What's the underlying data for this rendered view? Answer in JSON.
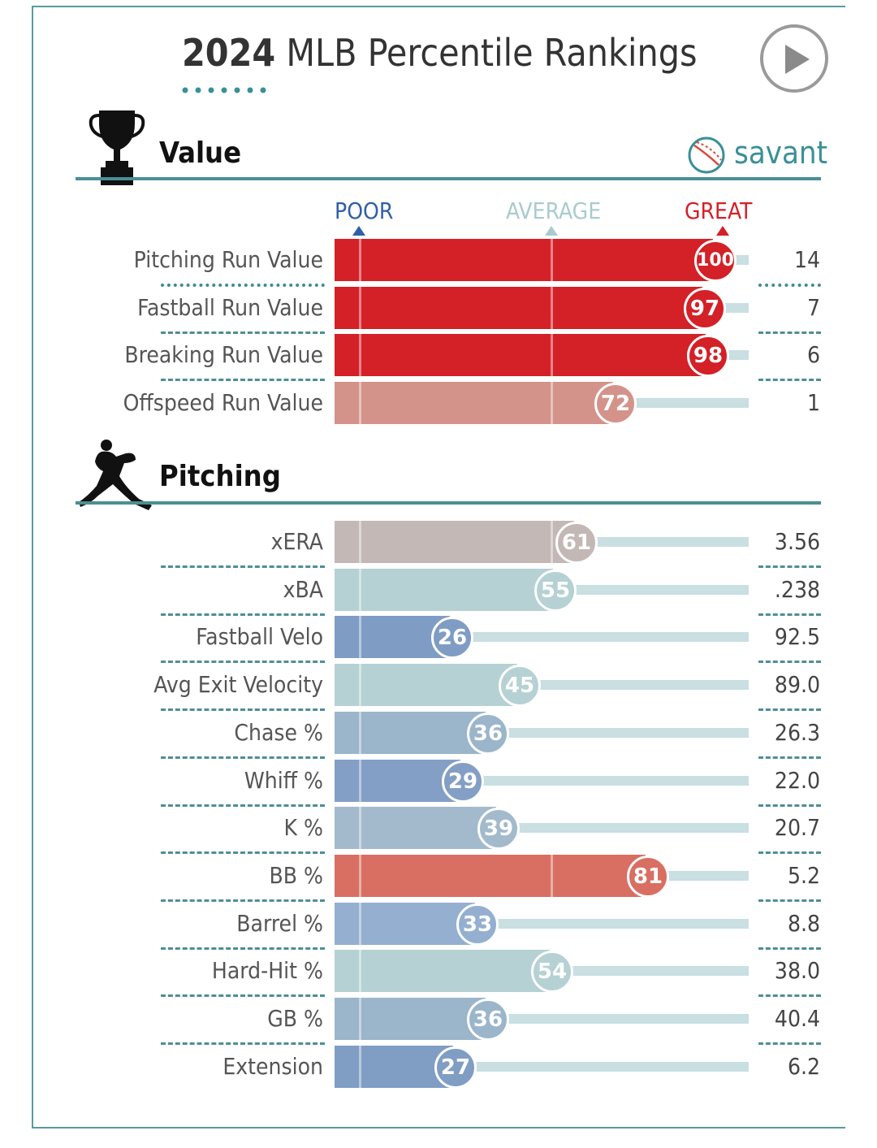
{
  "header": {
    "title_year": "2024",
    "title_rest": "MLB Percentile Rankings"
  },
  "logo": {
    "savant_label": "savant"
  },
  "icons": {
    "play": "play-icon",
    "trophy": "trophy-icon",
    "pitcher": "pitcher-silhouette-icon",
    "baseball": "baseball-icon"
  },
  "colors": {
    "accent": "#3b8f98",
    "great": "#d42027",
    "poor": "#2f5fa8",
    "average": "#a9cbce"
  },
  "axis_labels": {
    "poor": "POOR",
    "average": "AVERAGE",
    "great": "GREAT"
  },
  "chart_data": [
    {
      "type": "bar",
      "section": "Value",
      "orientation": "horizontal",
      "categories": [
        "Pitching Run Value",
        "Fastball Run Value",
        "Breaking Run Value",
        "Offspeed Run Value"
      ],
      "percentiles": [
        100,
        97,
        98,
        72
      ],
      "values": [
        "14",
        "7",
        "6",
        "1"
      ],
      "colors": [
        "#d42027",
        "#d42027",
        "#d42027",
        "#d4938a"
      ],
      "xlim": [
        0,
        100
      ]
    },
    {
      "type": "bar",
      "section": "Pitching",
      "orientation": "horizontal",
      "categories": [
        "xERA",
        "xBA",
        "Fastball Velo",
        "Avg Exit Velocity",
        "Chase %",
        "Whiff %",
        "K %",
        "BB %",
        "Barrel %",
        "Hard-Hit %",
        "GB %",
        "Extension"
      ],
      "percentiles": [
        61,
        55,
        26,
        45,
        36,
        29,
        39,
        81,
        33,
        54,
        36,
        27
      ],
      "values": [
        "3.56",
        ".238",
        "92.5",
        "89.0",
        "26.3",
        "22.0",
        "20.7",
        "5.2",
        "8.8",
        "38.0",
        "40.4",
        "6.2"
      ],
      "colors": [
        "#c3b8b6",
        "#b5d1d4",
        "#7f9cc4",
        "#b5d1d4",
        "#9bb5cb",
        "#849fc5",
        "#a3bacd",
        "#d86f62",
        "#94afd0",
        "#b5d1d4",
        "#9bb5cb",
        "#809dc4"
      ],
      "xlim": [
        0,
        100
      ]
    }
  ]
}
